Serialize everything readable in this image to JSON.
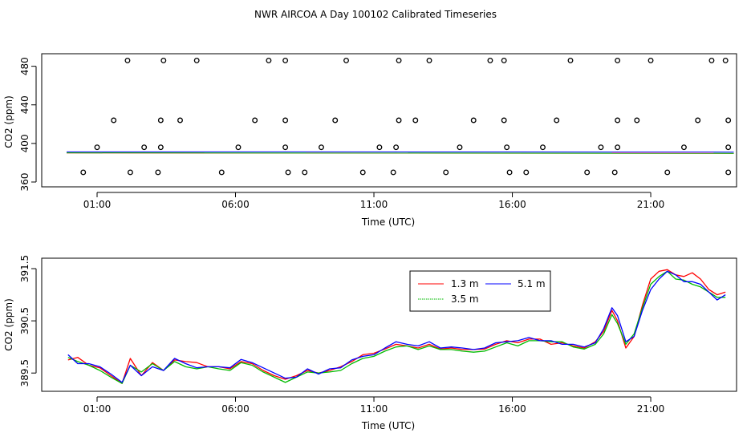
{
  "title": "NWR AIRCOA A  Day 100102  Calibrated Timeseries",
  "chart_data": [
    {
      "type": "scatter",
      "id": "top",
      "xlabel": "Time (UTC)",
      "ylabel": "CO2 (ppm)",
      "xlim": [
        -1.0,
        24.1
      ],
      "ylim": [
        355,
        493
      ],
      "x_tick_values": [
        1,
        6,
        11,
        16,
        21
      ],
      "x_tick_labels": [
        "01:00",
        "06:00",
        "11:00",
        "16:00",
        "21:00"
      ],
      "y_tick_values": [
        360,
        400,
        440,
        480
      ],
      "y_tick_labels": [
        "360",
        "400",
        "440",
        "480"
      ],
      "points": [
        [
          0.5,
          370
        ],
        [
          1.0,
          396
        ],
        [
          1.6,
          424
        ],
        [
          2.1,
          486
        ],
        [
          2.2,
          370
        ],
        [
          2.7,
          396
        ],
        [
          3.2,
          370
        ],
        [
          3.3,
          424
        ],
        [
          3.3,
          396
        ],
        [
          3.4,
          486
        ],
        [
          4.0,
          424
        ],
        [
          4.6,
          486
        ],
        [
          5.5,
          370
        ],
        [
          6.1,
          396
        ],
        [
          6.7,
          424
        ],
        [
          7.2,
          486
        ],
        [
          7.8,
          486
        ],
        [
          7.8,
          424
        ],
        [
          7.8,
          396
        ],
        [
          7.9,
          370
        ],
        [
          8.5,
          370
        ],
        [
          9.1,
          396
        ],
        [
          9.6,
          424
        ],
        [
          10.0,
          486
        ],
        [
          10.6,
          370
        ],
        [
          11.2,
          396
        ],
        [
          11.7,
          370
        ],
        [
          11.8,
          396
        ],
        [
          11.9,
          424
        ],
        [
          11.9,
          486
        ],
        [
          12.5,
          424
        ],
        [
          13.0,
          486
        ],
        [
          13.6,
          370
        ],
        [
          14.1,
          396
        ],
        [
          14.6,
          424
        ],
        [
          15.2,
          486
        ],
        [
          15.7,
          486
        ],
        [
          15.7,
          424
        ],
        [
          15.8,
          396
        ],
        [
          15.9,
          370
        ],
        [
          16.5,
          370
        ],
        [
          17.1,
          396
        ],
        [
          17.6,
          424
        ],
        [
          18.1,
          486
        ],
        [
          18.7,
          370
        ],
        [
          19.2,
          396
        ],
        [
          19.7,
          370
        ],
        [
          19.8,
          396
        ],
        [
          19.8,
          424
        ],
        [
          19.8,
          486
        ],
        [
          20.5,
          424
        ],
        [
          21.0,
          486
        ],
        [
          21.6,
          370
        ],
        [
          22.2,
          396
        ],
        [
          22.7,
          424
        ],
        [
          23.2,
          486
        ],
        [
          23.7,
          486
        ],
        [
          23.8,
          424
        ],
        [
          23.8,
          396
        ],
        [
          23.8,
          370
        ]
      ],
      "baseline_series": [
        {
          "name": "5.1 m",
          "color": "#0000ff",
          "values": [
            [
              -0.1,
              389.5
            ],
            [
              16,
              389.6
            ],
            [
              24.0,
              390.0
            ]
          ]
        },
        {
          "name": "1.3 m",
          "color": "#ff0000",
          "values": [
            [
              -0.1,
              389.7
            ],
            [
              24.0,
              390.6
            ]
          ]
        },
        {
          "name": "3.5 m",
          "color": "#00bb00",
          "values": [
            [
              -0.1,
              389.6
            ],
            [
              24.0,
              390.5
            ]
          ]
        }
      ]
    },
    {
      "type": "line",
      "id": "bottom",
      "xlabel": "Time (UTC)",
      "ylabel": "CO2 (ppm)",
      "xlim": [
        -1.0,
        24.1
      ],
      "ylim": [
        389.15,
        391.7
      ],
      "x_tick_values": [
        1,
        6,
        11,
        16,
        21
      ],
      "x_tick_labels": [
        "01:00",
        "06:00",
        "11:00",
        "16:00",
        "21:00"
      ],
      "y_tick_values": [
        389.5,
        390.5,
        391.5
      ],
      "y_tick_labels": [
        "389.5",
        "390.5",
        "391.5"
      ],
      "legend": {
        "position": "top-right-inside",
        "entries": [
          "1.3 m",
          "3.5 m",
          "5.1 m"
        ]
      },
      "series": [
        {
          "name": "1.3 m",
          "color": "#ff0000",
          "points": [
            [
              -0.05,
              389.75
            ],
            [
              0.3,
              389.8
            ],
            [
              0.7,
              389.65
            ],
            [
              1.1,
              389.6
            ],
            [
              1.5,
              389.45
            ],
            [
              1.9,
              389.3
            ],
            [
              2.2,
              389.78
            ],
            [
              2.6,
              389.45
            ],
            [
              3.0,
              389.7
            ],
            [
              3.4,
              389.55
            ],
            [
              3.8,
              389.75
            ],
            [
              4.2,
              389.72
            ],
            [
              4.6,
              389.7
            ],
            [
              5.0,
              389.62
            ],
            [
              5.4,
              389.62
            ],
            [
              5.8,
              389.58
            ],
            [
              6.2,
              389.72
            ],
            [
              6.6,
              389.68
            ],
            [
              7.0,
              389.55
            ],
            [
              7.4,
              389.45
            ],
            [
              7.8,
              389.38
            ],
            [
              8.2,
              389.45
            ],
            [
              8.6,
              389.55
            ],
            [
              9.0,
              389.5
            ],
            [
              9.4,
              389.55
            ],
            [
              9.8,
              389.62
            ],
            [
              10.2,
              389.72
            ],
            [
              10.6,
              389.85
            ],
            [
              11.0,
              389.88
            ],
            [
              11.4,
              389.96
            ],
            [
              11.8,
              390.05
            ],
            [
              12.2,
              390.02
            ],
            [
              12.6,
              389.98
            ],
            [
              13.0,
              390.05
            ],
            [
              13.4,
              389.96
            ],
            [
              13.8,
              389.98
            ],
            [
              14.2,
              389.95
            ],
            [
              14.6,
              389.95
            ],
            [
              15.0,
              389.96
            ],
            [
              15.4,
              390.05
            ],
            [
              15.8,
              390.12
            ],
            [
              16.2,
              390.08
            ],
            [
              16.6,
              390.15
            ],
            [
              17.0,
              390.15
            ],
            [
              17.4,
              390.05
            ],
            [
              17.8,
              390.08
            ],
            [
              18.2,
              390.02
            ],
            [
              18.6,
              389.98
            ],
            [
              19.0,
              390.1
            ],
            [
              19.3,
              390.3
            ],
            [
              19.6,
              390.7
            ],
            [
              19.8,
              390.5
            ],
            [
              20.1,
              389.98
            ],
            [
              20.4,
              390.2
            ],
            [
              20.7,
              390.8
            ],
            [
              21.0,
              391.3
            ],
            [
              21.3,
              391.45
            ],
            [
              21.6,
              391.48
            ],
            [
              21.9,
              391.38
            ],
            [
              22.2,
              391.35
            ],
            [
              22.5,
              391.42
            ],
            [
              22.8,
              391.3
            ],
            [
              23.1,
              391.1
            ],
            [
              23.4,
              391.0
            ],
            [
              23.7,
              391.05
            ]
          ]
        },
        {
          "name": "3.5 m",
          "color": "#00bb00",
          "points": [
            [
              -0.05,
              389.8
            ],
            [
              0.3,
              389.72
            ],
            [
              0.7,
              389.65
            ],
            [
              1.1,
              389.55
            ],
            [
              1.5,
              389.42
            ],
            [
              1.9,
              389.3
            ],
            [
              2.2,
              389.65
            ],
            [
              2.6,
              389.52
            ],
            [
              3.0,
              389.68
            ],
            [
              3.4,
              389.55
            ],
            [
              3.8,
              389.72
            ],
            [
              4.2,
              389.62
            ],
            [
              4.6,
              389.58
            ],
            [
              5.0,
              389.62
            ],
            [
              5.4,
              389.58
            ],
            [
              5.8,
              389.55
            ],
            [
              6.2,
              389.7
            ],
            [
              6.6,
              389.65
            ],
            [
              7.0,
              389.52
            ],
            [
              7.4,
              389.42
            ],
            [
              7.8,
              389.32
            ],
            [
              8.2,
              389.42
            ],
            [
              8.6,
              389.52
            ],
            [
              9.0,
              389.5
            ],
            [
              9.4,
              389.52
            ],
            [
              9.8,
              389.55
            ],
            [
              10.2,
              389.68
            ],
            [
              10.6,
              389.78
            ],
            [
              11.0,
              389.82
            ],
            [
              11.4,
              389.92
            ],
            [
              11.8,
              390.0
            ],
            [
              12.2,
              390.02
            ],
            [
              12.6,
              389.95
            ],
            [
              13.0,
              390.02
            ],
            [
              13.4,
              389.95
            ],
            [
              13.8,
              389.95
            ],
            [
              14.2,
              389.92
            ],
            [
              14.6,
              389.9
            ],
            [
              15.0,
              389.92
            ],
            [
              15.4,
              390.0
            ],
            [
              15.8,
              390.08
            ],
            [
              16.2,
              390.02
            ],
            [
              16.6,
              390.12
            ],
            [
              17.0,
              390.12
            ],
            [
              17.4,
              390.1
            ],
            [
              17.8,
              390.1
            ],
            [
              18.2,
              390.0
            ],
            [
              18.6,
              389.96
            ],
            [
              19.0,
              390.05
            ],
            [
              19.3,
              390.25
            ],
            [
              19.6,
              390.62
            ],
            [
              19.8,
              390.45
            ],
            [
              20.1,
              390.05
            ],
            [
              20.4,
              390.25
            ],
            [
              20.7,
              390.75
            ],
            [
              21.0,
              391.2
            ],
            [
              21.3,
              391.35
            ],
            [
              21.6,
              391.45
            ],
            [
              21.9,
              391.3
            ],
            [
              22.2,
              391.28
            ],
            [
              22.5,
              391.2
            ],
            [
              22.8,
              391.15
            ],
            [
              23.1,
              391.05
            ],
            [
              23.4,
              390.95
            ],
            [
              23.7,
              390.95
            ]
          ]
        },
        {
          "name": "5.1 m",
          "color": "#0000ff",
          "points": [
            [
              -0.05,
              389.85
            ],
            [
              0.3,
              389.68
            ],
            [
              0.7,
              389.68
            ],
            [
              1.1,
              389.62
            ],
            [
              1.5,
              389.48
            ],
            [
              1.9,
              389.32
            ],
            [
              2.2,
              389.65
            ],
            [
              2.6,
              389.45
            ],
            [
              3.0,
              389.62
            ],
            [
              3.4,
              389.55
            ],
            [
              3.8,
              389.78
            ],
            [
              4.2,
              389.68
            ],
            [
              4.6,
              389.6
            ],
            [
              5.0,
              389.62
            ],
            [
              5.4,
              389.62
            ],
            [
              5.8,
              389.6
            ],
            [
              6.2,
              389.76
            ],
            [
              6.6,
              389.7
            ],
            [
              7.0,
              389.6
            ],
            [
              7.4,
              389.5
            ],
            [
              7.8,
              389.4
            ],
            [
              8.2,
              389.42
            ],
            [
              8.6,
              389.58
            ],
            [
              9.0,
              389.48
            ],
            [
              9.4,
              389.58
            ],
            [
              9.8,
              389.6
            ],
            [
              10.2,
              389.75
            ],
            [
              10.6,
              389.82
            ],
            [
              11.0,
              389.85
            ],
            [
              11.4,
              389.98
            ],
            [
              11.8,
              390.1
            ],
            [
              12.2,
              390.05
            ],
            [
              12.6,
              390.02
            ],
            [
              13.0,
              390.1
            ],
            [
              13.4,
              389.98
            ],
            [
              13.8,
              390.0
            ],
            [
              14.2,
              389.98
            ],
            [
              14.6,
              389.95
            ],
            [
              15.0,
              389.98
            ],
            [
              15.4,
              390.08
            ],
            [
              15.8,
              390.1
            ],
            [
              16.2,
              390.12
            ],
            [
              16.6,
              390.18
            ],
            [
              17.0,
              390.12
            ],
            [
              17.4,
              390.12
            ],
            [
              17.8,
              390.05
            ],
            [
              18.2,
              390.05
            ],
            [
              18.6,
              390.0
            ],
            [
              19.0,
              390.08
            ],
            [
              19.3,
              390.35
            ],
            [
              19.6,
              390.75
            ],
            [
              19.8,
              390.6
            ],
            [
              20.1,
              390.1
            ],
            [
              20.4,
              390.2
            ],
            [
              20.7,
              390.7
            ],
            [
              21.0,
              391.1
            ],
            [
              21.3,
              391.3
            ],
            [
              21.6,
              391.45
            ],
            [
              21.9,
              391.38
            ],
            [
              22.2,
              391.25
            ],
            [
              22.5,
              391.25
            ],
            [
              22.8,
              391.2
            ],
            [
              23.1,
              391.05
            ],
            [
              23.4,
              390.9
            ],
            [
              23.7,
              391.0
            ]
          ]
        }
      ]
    }
  ]
}
